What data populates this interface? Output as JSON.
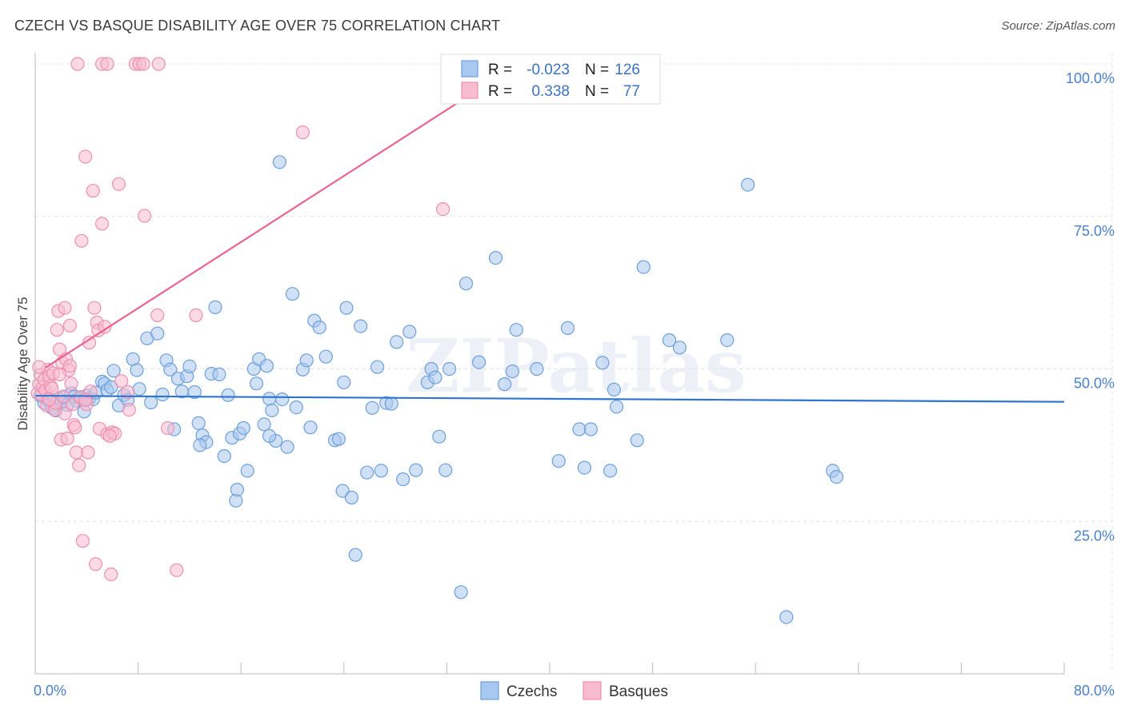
{
  "header": {
    "title": "CZECH VS BASQUE DISABILITY AGE OVER 75 CORRELATION CHART",
    "source": "Source: ZipAtlas.com"
  },
  "watermark": "ZIPatlas",
  "colors": {
    "czech_fill": "#a9c8ef",
    "czech_stroke": "#6d9fdc",
    "czech_line": "#2f74d0",
    "basque_fill": "#f7bcd0",
    "basque_stroke": "#ee8fb0",
    "basque_line": "#e8648f",
    "tick_label": "#4a7fcf",
    "grid": "#e3e3e3"
  },
  "legend": {
    "rows": [
      {
        "series": "Czechs",
        "r_label": "R =",
        "r_value": "-0.023",
        "n_label": "N =",
        "n_value": "126"
      },
      {
        "series": "Basques",
        "r_label": "R =",
        "r_value": "0.338",
        "n_label": "N =",
        "n_value": "77"
      }
    ]
  },
  "chart_data": {
    "type": "scatter",
    "title": "CZECH VS BASQUE DISABILITY AGE OVER 75 CORRELATION CHART",
    "xlabel": "",
    "ylabel": "Disability Age Over 75",
    "xlim": [
      0,
      80
    ],
    "ylim": [
      0,
      102
    ],
    "x_tick_labels": [
      {
        "value": 0,
        "label": "0.0%"
      },
      {
        "value": 80,
        "label": "80.0%"
      }
    ],
    "y_tick_labels": [
      {
        "value": 25,
        "label": "25.0%"
      },
      {
        "value": 50,
        "label": "50.0%"
      },
      {
        "value": 75,
        "label": "75.0%"
      },
      {
        "value": 100,
        "label": "100.0%"
      }
    ],
    "grid": true,
    "legend_position": "top-center",
    "series": [
      {
        "name": "Czechs",
        "r": -0.023,
        "n": 126,
        "trend": {
          "x": [
            0.0,
            80.0
          ],
          "y": [
            45.6,
            44.6
          ]
        },
        "points": [
          [
            0.4,
            45.6
          ],
          [
            0.7,
            44.4
          ],
          [
            1.0,
            44.9
          ],
          [
            1.3,
            43.6
          ],
          [
            1.6,
            43.2
          ],
          [
            1.8,
            45.1
          ],
          [
            2.0,
            44.5
          ],
          [
            2.2,
            45.3
          ],
          [
            2.5,
            44.1
          ],
          [
            2.8,
            46.0
          ],
          [
            3.0,
            45.4
          ],
          [
            3.2,
            44.8
          ],
          [
            3.5,
            45.2
          ],
          [
            3.8,
            43.0
          ],
          [
            4.0,
            45.6
          ],
          [
            4.2,
            45.1
          ],
          [
            4.5,
            45.0
          ],
          [
            4.7,
            46.1
          ],
          [
            5.2,
            47.9
          ],
          [
            5.4,
            47.6
          ],
          [
            5.6,
            46.5
          ],
          [
            5.9,
            47.0
          ],
          [
            6.1,
            49.7
          ],
          [
            6.5,
            44.0
          ],
          [
            6.9,
            45.7
          ],
          [
            7.2,
            44.9
          ],
          [
            7.6,
            51.6
          ],
          [
            7.9,
            49.8
          ],
          [
            8.1,
            46.7
          ],
          [
            8.7,
            55.0
          ],
          [
            9.0,
            44.5
          ],
          [
            9.5,
            55.8
          ],
          [
            9.9,
            45.8
          ],
          [
            10.2,
            51.4
          ],
          [
            10.5,
            49.9
          ],
          [
            10.8,
            40.1
          ],
          [
            11.1,
            48.4
          ],
          [
            11.4,
            46.3
          ],
          [
            11.8,
            48.8
          ],
          [
            12.0,
            50.4
          ],
          [
            12.4,
            46.2
          ],
          [
            12.7,
            41.1
          ],
          [
            13.0,
            39.1
          ],
          [
            13.3,
            38.0
          ],
          [
            13.7,
            49.2
          ],
          [
            14.0,
            60.1
          ],
          [
            14.3,
            49.1
          ],
          [
            14.7,
            35.7
          ],
          [
            15.0,
            45.7
          ],
          [
            15.3,
            38.7
          ],
          [
            15.6,
            28.4
          ],
          [
            15.9,
            39.4
          ],
          [
            16.2,
            40.3
          ],
          [
            16.5,
            33.3
          ],
          [
            17.0,
            50.0
          ],
          [
            17.2,
            47.6
          ],
          [
            17.4,
            51.6
          ],
          [
            17.8,
            40.9
          ],
          [
            18.2,
            45.1
          ],
          [
            18.4,
            43.2
          ],
          [
            18.7,
            38.2
          ],
          [
            19.0,
            83.9
          ],
          [
            19.2,
            45.0
          ],
          [
            19.6,
            37.2
          ],
          [
            20.0,
            62.3
          ],
          [
            20.3,
            43.7
          ],
          [
            20.8,
            49.9
          ],
          [
            21.1,
            51.4
          ],
          [
            21.4,
            40.4
          ],
          [
            21.7,
            57.9
          ],
          [
            22.1,
            56.8
          ],
          [
            22.6,
            52.0
          ],
          [
            23.3,
            38.3
          ],
          [
            23.6,
            38.5
          ],
          [
            24.0,
            47.8
          ],
          [
            24.2,
            60.0
          ],
          [
            25.3,
            57.0
          ],
          [
            25.8,
            33.0
          ],
          [
            26.2,
            43.6
          ],
          [
            26.6,
            50.3
          ],
          [
            26.9,
            33.3
          ],
          [
            27.3,
            44.4
          ],
          [
            27.7,
            44.3
          ],
          [
            28.1,
            54.4
          ],
          [
            28.6,
            31.9
          ],
          [
            29.1,
            56.1
          ],
          [
            29.6,
            33.4
          ],
          [
            30.5,
            47.8
          ],
          [
            30.8,
            50.0
          ],
          [
            31.1,
            48.6
          ],
          [
            31.4,
            38.9
          ],
          [
            31.9,
            33.4
          ],
          [
            32.2,
            50.0
          ],
          [
            33.5,
            64.0
          ],
          [
            34.5,
            51.1
          ],
          [
            35.8,
            68.2
          ],
          [
            36.5,
            47.5
          ],
          [
            37.1,
            49.6
          ],
          [
            37.4,
            56.4
          ],
          [
            39.0,
            50.0
          ],
          [
            40.7,
            34.9
          ],
          [
            41.4,
            56.7
          ],
          [
            42.3,
            40.1
          ],
          [
            42.7,
            33.8
          ],
          [
            43.2,
            40.1
          ],
          [
            44.7,
            33.3
          ],
          [
            45.0,
            46.6
          ],
          [
            45.2,
            43.8
          ],
          [
            46.8,
            38.3
          ],
          [
            49.3,
            54.7
          ],
          [
            50.1,
            53.5
          ],
          [
            53.8,
            54.7
          ],
          [
            62.0,
            33.3
          ],
          [
            62.3,
            32.3
          ],
          [
            18.2,
            39.0
          ],
          [
            18.0,
            50.5
          ],
          [
            12.8,
            37.5
          ],
          [
            15.7,
            30.2
          ],
          [
            23.9,
            30.0
          ],
          [
            24.6,
            28.9
          ],
          [
            24.9,
            19.5
          ],
          [
            33.1,
            13.4
          ],
          [
            58.4,
            9.3
          ],
          [
            55.4,
            80.2
          ],
          [
            44.1,
            51.0
          ],
          [
            47.3,
            66.7
          ]
        ]
      },
      {
        "name": "Basques",
        "r": 0.338,
        "n": 77,
        "trend": {
          "x": [
            0.8,
            37.7
          ],
          "y": [
            50.2,
            100.2
          ]
        },
        "points": [
          [
            0.2,
            46.0
          ],
          [
            0.3,
            47.5
          ],
          [
            0.4,
            49.0
          ],
          [
            0.5,
            45.8
          ],
          [
            0.6,
            47.0
          ],
          [
            0.7,
            48.2
          ],
          [
            0.8,
            46.5
          ],
          [
            0.9,
            44.0
          ],
          [
            1.0,
            49.9
          ],
          [
            1.1,
            48.8
          ],
          [
            1.2,
            47.2
          ],
          [
            1.3,
            46.8
          ],
          [
            1.4,
            49.3
          ],
          [
            1.5,
            43.3
          ],
          [
            1.6,
            44.4
          ],
          [
            1.7,
            56.4
          ],
          [
            1.8,
            59.5
          ],
          [
            1.9,
            53.2
          ],
          [
            2.0,
            38.4
          ],
          [
            2.1,
            51.0
          ],
          [
            2.2,
            45.5
          ],
          [
            2.3,
            42.7
          ],
          [
            2.4,
            51.6
          ],
          [
            2.5,
            38.6
          ],
          [
            2.6,
            49.8
          ],
          [
            2.7,
            57.1
          ],
          [
            2.8,
            47.6
          ],
          [
            2.9,
            44.2
          ],
          [
            3.0,
            40.8
          ],
          [
            3.1,
            40.4
          ],
          [
            3.2,
            36.3
          ],
          [
            3.4,
            34.2
          ],
          [
            3.5,
            45.4
          ],
          [
            3.6,
            71.0
          ],
          [
            3.7,
            21.8
          ],
          [
            3.9,
            84.8
          ],
          [
            4.0,
            44.2
          ],
          [
            4.1,
            36.3
          ],
          [
            4.2,
            54.3
          ],
          [
            4.3,
            46.3
          ],
          [
            4.5,
            79.2
          ],
          [
            4.6,
            60.0
          ],
          [
            4.7,
            18.0
          ],
          [
            4.8,
            57.6
          ],
          [
            4.9,
            56.3
          ],
          [
            5.0,
            40.2
          ],
          [
            5.2,
            73.8
          ],
          [
            5.4,
            56.9
          ],
          [
            5.6,
            39.3
          ],
          [
            5.9,
            16.3
          ],
          [
            6.0,
            39.6
          ],
          [
            6.2,
            39.4
          ],
          [
            6.5,
            80.3
          ],
          [
            7.3,
            43.3
          ],
          [
            8.5,
            75.1
          ],
          [
            9.5,
            58.8
          ],
          [
            10.3,
            40.3
          ],
          [
            11.0,
            17.0
          ],
          [
            12.5,
            58.8
          ],
          [
            20.8,
            88.8
          ],
          [
            31.7,
            76.2
          ],
          [
            3.3,
            100.0
          ],
          [
            5.2,
            100.0
          ],
          [
            5.6,
            100.0
          ],
          [
            7.8,
            100.0
          ],
          [
            8.1,
            100.0
          ],
          [
            8.4,
            100.0
          ],
          [
            9.6,
            100.0
          ],
          [
            6.7,
            48.0
          ],
          [
            1.9,
            49.1
          ],
          [
            2.7,
            50.5
          ],
          [
            3.9,
            44.9
          ],
          [
            0.3,
            50.3
          ],
          [
            1.1,
            45.0
          ],
          [
            5.8,
            39.0
          ],
          [
            7.2,
            46.2
          ],
          [
            2.3,
            60.0
          ]
        ]
      }
    ]
  },
  "bottom_legend": {
    "items": [
      {
        "label": "Czechs"
      },
      {
        "label": "Basques"
      }
    ]
  }
}
